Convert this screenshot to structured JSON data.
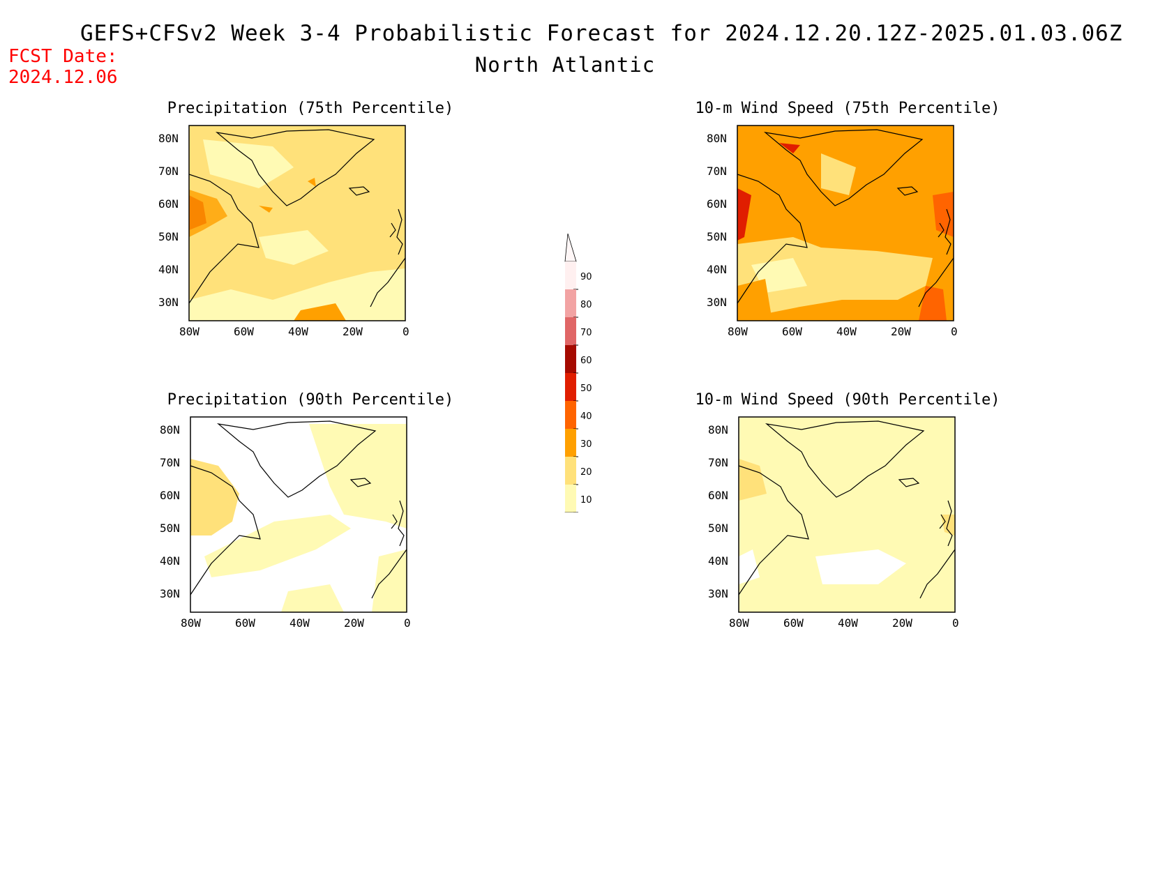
{
  "header": {
    "title": "GEFS+CFSv2 Week 3-4 Probabilistic Forecast for 2024.12.20.12Z-2025.01.03.06Z",
    "region": "North Atlantic",
    "fcst_label": "FCST Date:",
    "fcst_value": "2024.12.06"
  },
  "axes": {
    "lat_ticks": [
      "80N",
      "70N",
      "60N",
      "50N",
      "40N",
      "30N"
    ],
    "lon_ticks": [
      "80W",
      "60W",
      "40W",
      "20W",
      "0"
    ]
  },
  "panels": [
    {
      "title": "Precipitation (75th Percentile)",
      "background_level": 20
    },
    {
      "title": "10-m Wind Speed (75th Percentile)",
      "background_level": 30
    },
    {
      "title": "Precipitation (90th Percentile)",
      "background_level": 0
    },
    {
      "title": "10-m Wind Speed (90th Percentile)",
      "background_level": 10
    }
  ],
  "colorbar": {
    "labels": [
      "90",
      "80",
      "70",
      "60",
      "50",
      "40",
      "30",
      "20",
      "10"
    ],
    "colors": [
      "#fff0f0",
      "#f2a3a3",
      "#e06666",
      "#a50a00",
      "#e01e00",
      "#ff6400",
      "#ffa000",
      "#ffe17a",
      "#fffab4"
    ]
  }
}
